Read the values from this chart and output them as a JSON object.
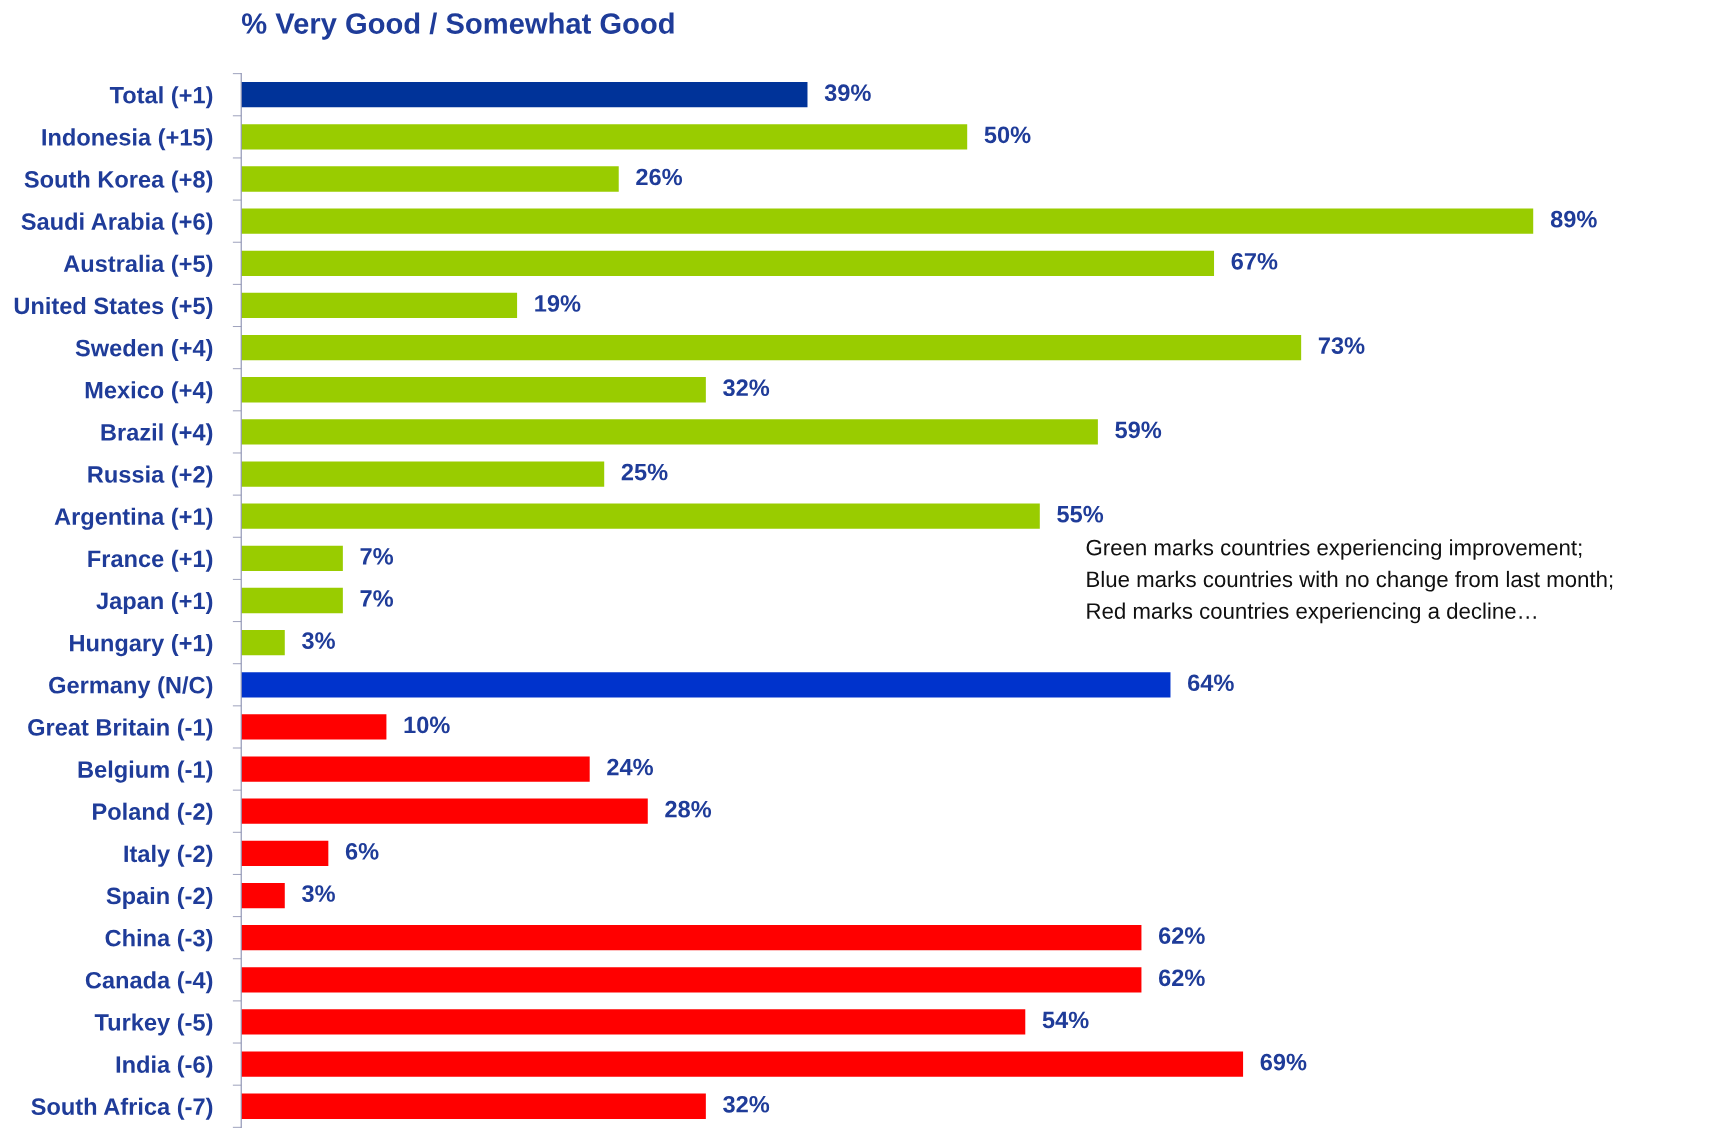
{
  "chart_data": {
    "type": "bar",
    "orientation": "horizontal",
    "title": "% Very Good / Somewhat Good",
    "categories": [
      "Total (+1)",
      "Indonesia (+15)",
      "South Korea (+8)",
      "Saudi Arabia (+6)",
      "Australia (+5)",
      "United States (+5)",
      "Sweden (+4)",
      "Mexico (+4)",
      "Brazil (+4)",
      "Russia (+2)",
      "Argentina (+1)",
      "France (+1)",
      "Japan (+1)",
      "Hungary (+1)",
      "Germany (N/C)",
      "Great Britain (-1)",
      "Belgium (-1)",
      "Poland (-2)",
      "Italy (-2)",
      "Spain (-2)",
      "China (-3)",
      "Canada (-4)",
      "Turkey (-5)",
      "India (-6)",
      "South Africa (-7)"
    ],
    "values": [
      39,
      50,
      26,
      89,
      67,
      19,
      73,
      32,
      59,
      25,
      55,
      7,
      7,
      3,
      64,
      10,
      24,
      28,
      6,
      3,
      62,
      62,
      54,
      69,
      32
    ],
    "value_labels": [
      "39%",
      "50%",
      "26%",
      "89%",
      "67%",
      "19%",
      "73%",
      "32%",
      "59%",
      "25%",
      "55%",
      "7%",
      "7%",
      "3%",
      "64%",
      "10%",
      "24%",
      "28%",
      "6%",
      "3%",
      "62%",
      "62%",
      "54%",
      "69%",
      "32%"
    ],
    "colors": [
      "#003399",
      "#99cc00",
      "#99cc00",
      "#99cc00",
      "#99cc00",
      "#99cc00",
      "#99cc00",
      "#99cc00",
      "#99cc00",
      "#99cc00",
      "#99cc00",
      "#99cc00",
      "#99cc00",
      "#99cc00",
      "#0033cc",
      "#ff0000",
      "#ff0000",
      "#ff0000",
      "#ff0000",
      "#ff0000",
      "#ff0000",
      "#ff0000",
      "#ff0000",
      "#ff0000",
      "#ff0000"
    ],
    "tick_labels": "y",
    "grid": false,
    "legend": false,
    "annotations": [
      "Green marks countries experiencing improvement;",
      "Blue marks countries with no change from last month;",
      "Red marks countries experiencing a decline…"
    ]
  }
}
